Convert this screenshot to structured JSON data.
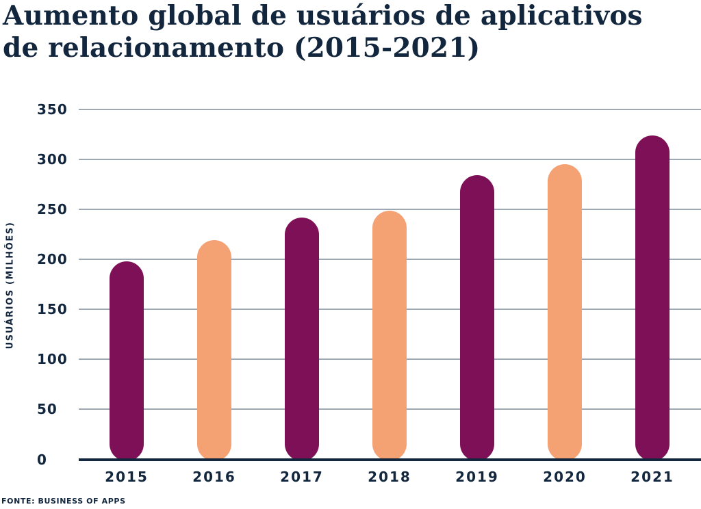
{
  "title": {
    "line1": "Aumento global de usuários de aplicativos",
    "line2": "de relacionamento (2015-2021)"
  },
  "y_axis_title": "USUÁRIOS (MILHÕES)",
  "source_note": "FONTE: BUSINESS OF APPS",
  "chart_data": {
    "type": "bar",
    "title": "Aumento global de usuários de aplicativos de relacionamento (2015-2021)",
    "categories": [
      "2015",
      "2016",
      "2017",
      "2018",
      "2019",
      "2020",
      "2021"
    ],
    "values": [
      198,
      219,
      242,
      249,
      284,
      295,
      324
    ],
    "xlabel": "",
    "ylabel": "USUÁRIOS (MILHÕES)",
    "ylim": [
      0,
      350
    ],
    "yticks": [
      0,
      50,
      100,
      150,
      200,
      250,
      300,
      350
    ],
    "grid": true,
    "legend": false,
    "bar_color_odd_years": "#7D1056",
    "bar_color_even_years": "#F4A273",
    "source": "FONTE: BUSINESS OF APPS"
  },
  "colors": {
    "text_navy": "#12263E",
    "bar_magenta": "#7D1056",
    "bar_peach": "#F4A273",
    "gridline_gray": "#9EA8B2",
    "background": "#FFFFFF"
  }
}
